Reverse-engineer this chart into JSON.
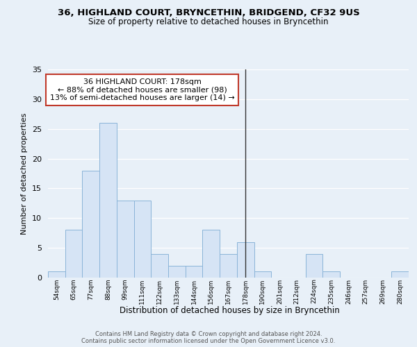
{
  "title1": "36, HIGHLAND COURT, BRYNCETHIN, BRIDGEND, CF32 9US",
  "title2": "Size of property relative to detached houses in Bryncethin",
  "xlabel": "Distribution of detached houses by size in Bryncethin",
  "ylabel": "Number of detached properties",
  "bin_labels": [
    "54sqm",
    "65sqm",
    "77sqm",
    "88sqm",
    "99sqm",
    "111sqm",
    "122sqm",
    "133sqm",
    "144sqm",
    "156sqm",
    "167sqm",
    "178sqm",
    "190sqm",
    "201sqm",
    "212sqm",
    "224sqm",
    "235sqm",
    "246sqm",
    "257sqm",
    "269sqm",
    "280sqm"
  ],
  "bar_heights": [
    1,
    8,
    18,
    26,
    13,
    13,
    4,
    2,
    2,
    8,
    4,
    6,
    1,
    0,
    0,
    4,
    1,
    0,
    0,
    0,
    1
  ],
  "bar_color": "#d6e4f5",
  "bar_edge_color": "#8ab4d8",
  "vline_x_index": 11,
  "vline_color": "#c0392b",
  "annotation_line1": "36 HIGHLAND COURT: 178sqm",
  "annotation_line2": "← 88% of detached houses are smaller (98)",
  "annotation_line3": "13% of semi-detached houses are larger (14) →",
  "annotation_box_color": "#ffffff",
  "annotation_box_edge": "#c0392b",
  "ylim": [
    0,
    35
  ],
  "yticks": [
    0,
    5,
    10,
    15,
    20,
    25,
    30,
    35
  ],
  "footer1": "Contains HM Land Registry data © Crown copyright and database right 2024.",
  "footer2": "Contains public sector information licensed under the Open Government Licence v3.0.",
  "bg_color": "#e8f0f8",
  "plot_bg_color": "#e8f0f8"
}
